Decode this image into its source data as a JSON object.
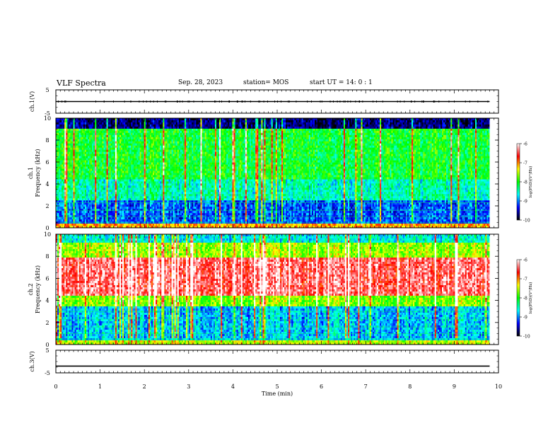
{
  "header": {
    "title": "VLF Spectra",
    "date": "Sep. 28, 2023",
    "station": "station= MOS",
    "start": "start UT =  14: 0 : 1"
  },
  "colorbar": {
    "label": "log(PSD)(V²/Hz)",
    "ticks": [
      "-6",
      "-7",
      "-8",
      "-9",
      "-10"
    ],
    "stops": [
      "#ffffff",
      "#ff0000",
      "#ffff00",
      "#00ff00",
      "#00ffff",
      "#0000ff",
      "#000000"
    ]
  },
  "chart_data": [
    {
      "type": "line",
      "panel": "ch1-waveform",
      "ylabel": "ch.1(V)",
      "ylim": [
        -5,
        5
      ],
      "yticks": [
        "5",
        "-5"
      ],
      "xlim": [
        0,
        10
      ],
      "series": [
        {
          "x": [
            0,
            9.8
          ],
          "values": [
            0,
            0
          ]
        }
      ]
    },
    {
      "type": "heatmap",
      "panel": "ch1-spectrogram",
      "ylabel": "ch.1",
      "ylabel2": "Frequency (kHz)",
      "ylim": [
        0,
        10
      ],
      "yticks": [
        "0",
        "2",
        "4",
        "6",
        "8",
        "10"
      ],
      "xlim": [
        0,
        10
      ],
      "data_end_min": 9.8,
      "bands": [
        {
          "from": 0,
          "to": 0.4,
          "level": 0.72
        },
        {
          "from": 0.4,
          "to": 2.5,
          "level": 0.22
        },
        {
          "from": 2.5,
          "to": 4.5,
          "level": 0.38
        },
        {
          "from": 4.5,
          "to": 9.0,
          "level": 0.48
        },
        {
          "from": 9.0,
          "to": 10,
          "level": 0.08
        }
      ]
    },
    {
      "type": "heatmap",
      "panel": "ch2-spectrogram",
      "ylabel": "ch.2",
      "ylabel2": "Frequency (kHz)",
      "ylim": [
        0,
        10
      ],
      "yticks": [
        "0",
        "2",
        "4",
        "6",
        "8",
        "10"
      ],
      "xlim": [
        0,
        10
      ],
      "data_end_min": 9.8,
      "bands": [
        {
          "from": 0,
          "to": 0.4,
          "level": 0.62
        },
        {
          "from": 0.4,
          "to": 3.5,
          "level": 0.3
        },
        {
          "from": 3.5,
          "to": 4.5,
          "level": 0.58
        },
        {
          "from": 4.5,
          "to": 7.8,
          "level": 0.9
        },
        {
          "from": 7.8,
          "to": 9.2,
          "level": 0.6
        },
        {
          "from": 9.2,
          "to": 10,
          "level": 0.35
        }
      ]
    },
    {
      "type": "line",
      "panel": "ch3-waveform",
      "ylabel": "ch.3(V)",
      "ylim": [
        -5,
        5
      ],
      "yticks": [
        "5",
        "-5"
      ],
      "xlim": [
        0,
        10
      ],
      "series": [
        {
          "x": [
            0,
            9.8
          ],
          "values": [
            -2,
            -2
          ]
        }
      ]
    }
  ],
  "xaxis": {
    "label": "Time  (min)",
    "ticks": [
      "0",
      "1",
      "2",
      "3",
      "4",
      "5",
      "6",
      "7",
      "8",
      "9",
      "10"
    ]
  }
}
